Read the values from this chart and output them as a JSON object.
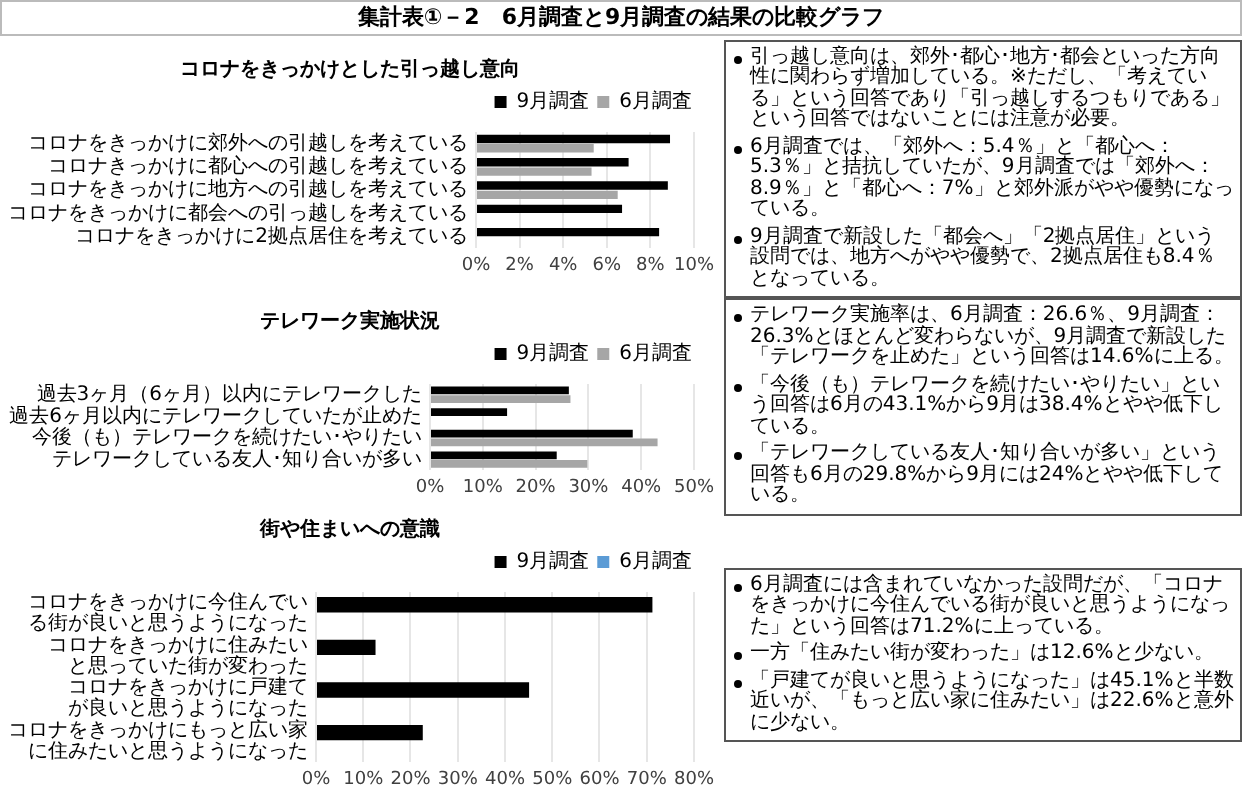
{
  "chart_data": [
    {
      "type": "other",
      "title": "集計表①－2　6月調査と9月調査の結果の比較グラフ"
    },
    {
      "type": "bar",
      "orientation": "horizontal",
      "title": "コロナをきっかけとした引っ越し意向",
      "categories": [
        "コロナをきっかけに郊外への引越しを考えている",
        "コロナきっかけに都心への引越しを考えている",
        "コロナをきっかけに地方への引越しを考えている",
        "コロナをきっかけに都会への引っ越しを考えている",
        "コロナをきっかけに2拠点居住を考えている"
      ],
      "series": [
        {
          "name": "9月調査",
          "color": "#000000",
          "values": [
            8.9,
            7,
            8.8,
            6.7,
            8.4
          ]
        },
        {
          "name": "6月調査",
          "color": "#a6a6a6",
          "values": [
            5.4,
            5.3,
            6.5,
            null,
            null
          ]
        }
      ],
      "xlim": [
        0,
        10
      ],
      "xticks": [
        {
          "value": 0,
          "label": "0%"
        },
        {
          "value": 2,
          "label": "2%"
        },
        {
          "value": 4,
          "label": "4%"
        },
        {
          "value": 6,
          "label": "6%"
        },
        {
          "value": 8,
          "label": "8%"
        },
        {
          "value": 10,
          "label": "10%"
        }
      ],
      "grid": "x",
      "legend": "top right"
    },
    {
      "type": "other",
      "annotations": [
        "引っ越し意向は、郊外･都心･地方･都会といった方向性に関わらず増加している。※ただし、「考えている」という回答であり「引っ越しするつもりである」という回答ではないことには注意が必要。",
        "6月調査では、「郊外へ：5.4％」と「都心へ：5.3％」と拮抗していたが、9月調査では「郊外へ：8.9％」と「都心へ：7%」と郊外派がやや優勢になっている。",
        "9月調査で新設した「都会へ」「2拠点居住」という設問では、地方へがやや優勢で、2拠点居住も8.4％となっている。"
      ]
    },
    {
      "type": "bar",
      "orientation": "horizontal",
      "title": "テレワーク実施状況",
      "categories": [
        "過去3ヶ月（6ヶ月）以内にテレワークした",
        "過去6ヶ月以内にテレワークしていたが止めた",
        "今後（も）テレワークを続けたい･やりたい",
        "テレワークしている友人･知り合いが多い"
      ],
      "series": [
        {
          "name": "9月調査",
          "color": "#000000",
          "values": [
            26.3,
            14.6,
            38.4,
            24
          ]
        },
        {
          "name": "6月調査",
          "color": "#a6a6a6",
          "values": [
            26.6,
            null,
            43.1,
            29.8
          ]
        }
      ],
      "xlim": [
        0,
        50
      ],
      "xticks": [
        {
          "value": 0,
          "label": "0%"
        },
        {
          "value": 10,
          "label": "10%"
        },
        {
          "value": 20,
          "label": "20%"
        },
        {
          "value": 30,
          "label": "30%"
        },
        {
          "value": 40,
          "label": "40%"
        },
        {
          "value": 50,
          "label": "50%"
        }
      ],
      "grid": "x",
      "legend": "top right"
    },
    {
      "type": "other",
      "annotations": [
        "テレワーク実施率は、6月調査：26.6％、9月調査：26.3%とほとんど変わらないが、9月調査で新設した「テレワークを止めた」という回答は14.6%に上る。",
        "「今後（も）テレワークを続けたい･やりたい」という回答は6月の43.1%から9月は38.4%とやや低下している。",
        "「テレワークしている友人･知り合いが多い」という回答も6月の29.8%から9月には24%とやや低下している。"
      ]
    },
    {
      "type": "bar",
      "orientation": "horizontal",
      "title": "街や住まいへの意識",
      "categories": [
        "コロナをきっかけに今住んでいる街が良いと思うようになった",
        "コロナをきっかけに住みたいと思っていた街が変わった",
        "コロナをきっかけに戸建てが良いと思うようになった",
        "コロナをきっかけにもっと広い家に住みたいと思うようになった"
      ],
      "series": [
        {
          "name": "9月調査",
          "color": "#000000",
          "values": [
            71.2,
            12.6,
            45.1,
            22.6
          ]
        },
        {
          "name": "6月調査",
          "color": "#5b9bd5",
          "values": [
            null,
            null,
            null,
            null
          ]
        }
      ],
      "xlim": [
        0,
        80
      ],
      "xticks": [
        {
          "value": 0,
          "label": "0%"
        },
        {
          "value": 10,
          "label": "10%"
        },
        {
          "value": 20,
          "label": "20%"
        },
        {
          "value": 30,
          "label": "30%"
        },
        {
          "value": 40,
          "label": "40%"
        },
        {
          "value": 50,
          "label": "50%"
        },
        {
          "value": 60,
          "label": "60%"
        },
        {
          "value": 70,
          "label": "70%"
        },
        {
          "value": 80,
          "label": "80%"
        }
      ],
      "grid": "x",
      "legend": "top right"
    },
    {
      "type": "other",
      "annotations": [
        "6月調査には含まれていなかった設問だが、「コロナをきっかけに今住んでいる街が良いと思うようになった」という回答は71.2%に上っている。",
        "一方「住みたい街が変わった」は12.6%と少ない。",
        "「戸建てが良いと思うようになった」は45.1%と半数近いが、「もっと広い家に住みたい」は22.6%と意外に少ない。"
      ]
    }
  ]
}
